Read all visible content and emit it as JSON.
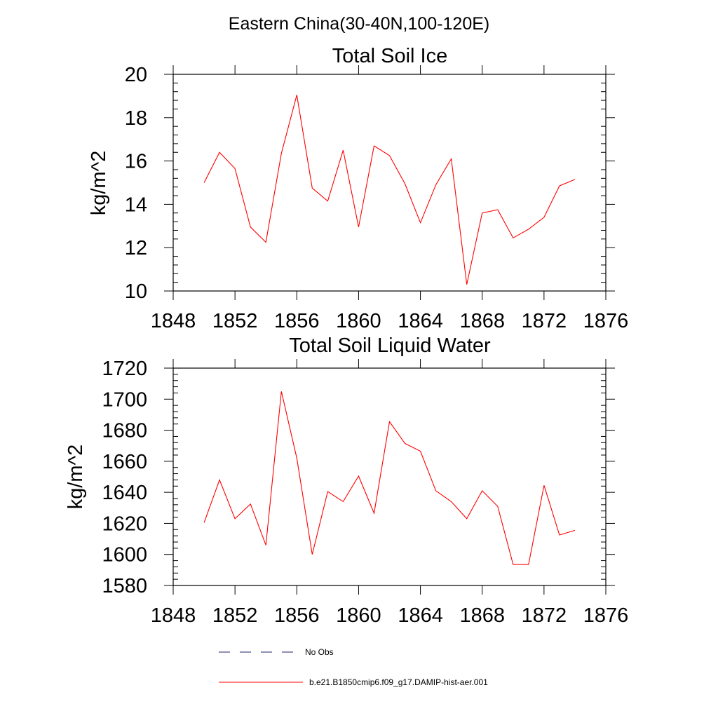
{
  "figure_title": "Eastern China(30-40N,100-120E)",
  "chart_data": [
    {
      "type": "line",
      "title": "Total Soil Ice",
      "xlabel": "",
      "ylabel": "kg/m^2",
      "xlim": [
        1848,
        1876
      ],
      "ylim": [
        10,
        20
      ],
      "xticks": [
        1848,
        1852,
        1856,
        1860,
        1864,
        1868,
        1872,
        1876
      ],
      "yticks": [
        10,
        12,
        14,
        16,
        18,
        20
      ],
      "grid": false,
      "series": [
        {
          "name": "b.e21.B1850cmip6.f09_g17.DAMIP-hist-aer.001",
          "color": "#ff0000",
          "x": [
            1850,
            1851,
            1852,
            1853,
            1854,
            1855,
            1856,
            1857,
            1858,
            1859,
            1860,
            1861,
            1862,
            1863,
            1864,
            1865,
            1866,
            1867,
            1868,
            1869,
            1870,
            1871,
            1872,
            1873,
            1874
          ],
          "values": [
            15.0,
            16.4,
            15.65,
            12.95,
            12.25,
            16.35,
            19.05,
            14.75,
            14.15,
            16.5,
            12.95,
            16.7,
            16.25,
            14.95,
            13.15,
            14.9,
            16.1,
            10.3,
            13.6,
            13.75,
            12.45,
            12.85,
            13.4,
            14.85,
            15.15
          ]
        }
      ]
    },
    {
      "type": "line",
      "title": "Total Soil Liquid Water",
      "xlabel": "",
      "ylabel": "kg/m^2",
      "xlim": [
        1848,
        1876
      ],
      "ylim": [
        1580,
        1720
      ],
      "xticks": [
        1848,
        1852,
        1856,
        1860,
        1864,
        1868,
        1872,
        1876
      ],
      "yticks": [
        1580,
        1600,
        1620,
        1640,
        1660,
        1680,
        1700,
        1720
      ],
      "grid": false,
      "series": [
        {
          "name": "b.e21.B1850cmip6.f09_g17.DAMIP-hist-aer.001",
          "color": "#ff0000",
          "x": [
            1850,
            1851,
            1852,
            1853,
            1854,
            1855,
            1856,
            1857,
            1858,
            1859,
            1860,
            1861,
            1862,
            1863,
            1864,
            1865,
            1866,
            1867,
            1868,
            1869,
            1870,
            1871,
            1872,
            1873,
            1874
          ],
          "values": [
            1620.5,
            1648,
            1623,
            1632.5,
            1606,
            1705,
            1662,
            1600,
            1640.5,
            1634,
            1650.5,
            1626.5,
            1685.5,
            1671.5,
            1666.5,
            1641,
            1634,
            1623,
            1641,
            1631,
            1593.5,
            1593.5,
            1644.5,
            1612.5,
            1615.5
          ]
        }
      ]
    }
  ],
  "legend": {
    "placement": "bottom",
    "items": [
      {
        "label": "No Obs",
        "color": "#1f1f66",
        "style": "dashed"
      },
      {
        "label": "b.e21.B1850cmip6.f09_g17.DAMIP-hist-aer.001",
        "color": "#ff0000",
        "style": "solid"
      }
    ]
  }
}
